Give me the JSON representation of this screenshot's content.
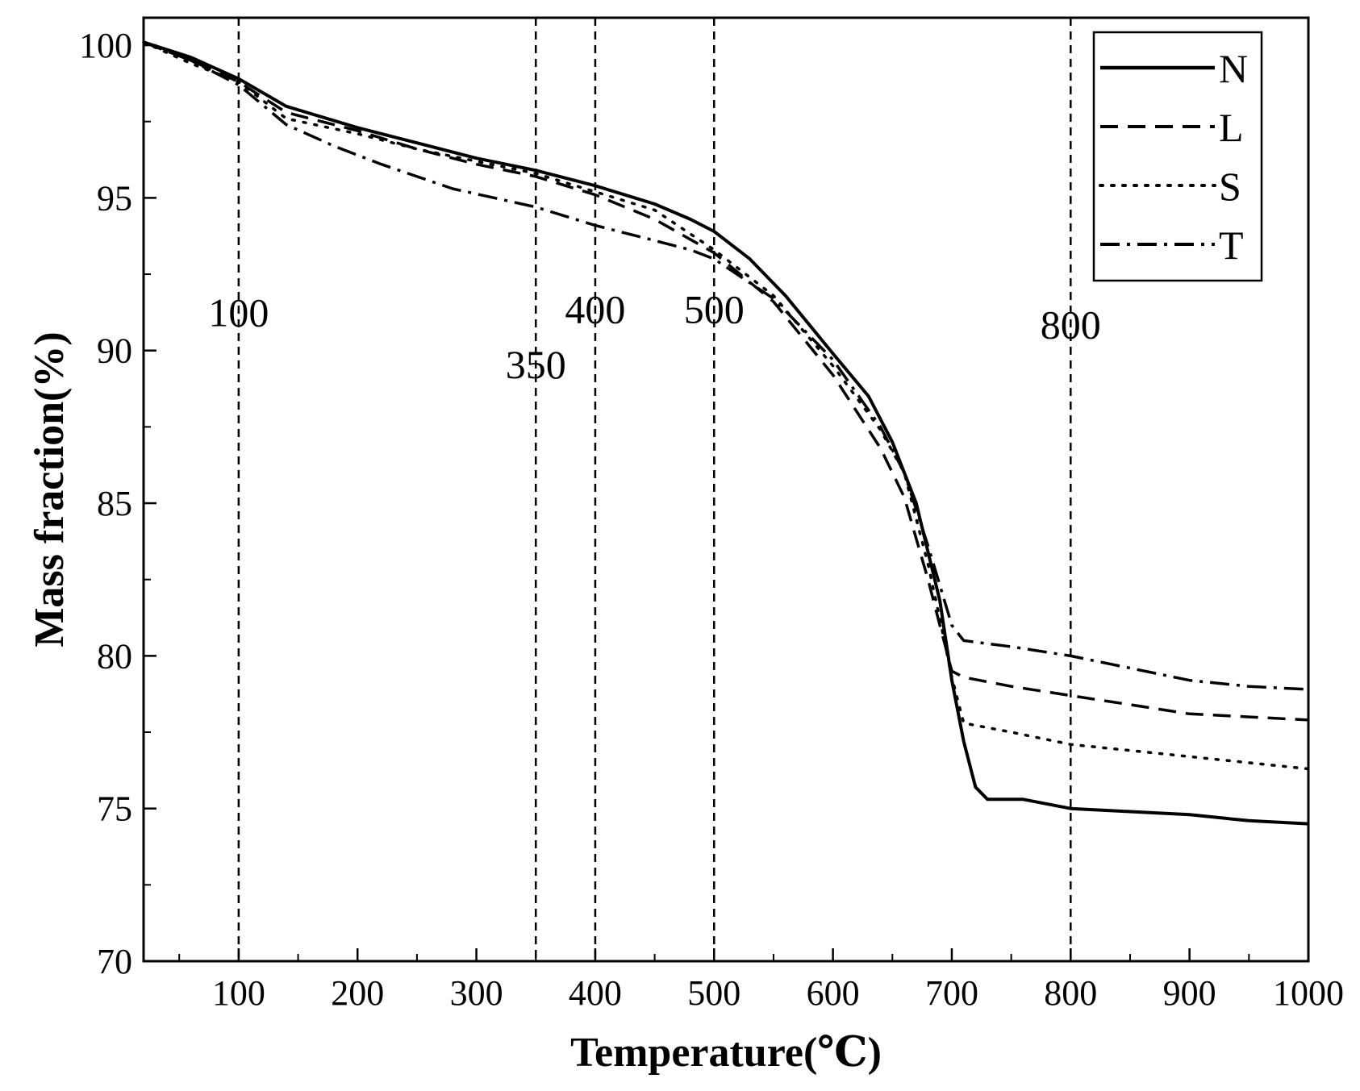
{
  "chart_data": {
    "type": "line",
    "xlabel": "Temperature(℃)",
    "ylabel": "Mass fraction(%)",
    "xlim": [
      20,
      1000
    ],
    "ylim": [
      70,
      100.9
    ],
    "xticks": [
      100,
      200,
      300,
      400,
      500,
      600,
      700,
      800,
      900,
      1000
    ],
    "xtick_labels": [
      "100",
      "200",
      "300",
      "400",
      "500",
      "600",
      "700",
      "800",
      "900",
      "1000"
    ],
    "yticks": [
      70,
      75,
      80,
      85,
      90,
      95,
      100
    ],
    "ytick_labels": [
      "70",
      "75",
      "80",
      "85",
      "90",
      "95",
      "100"
    ],
    "grid": false,
    "legend_position": "top-right",
    "vlines": [
      {
        "x": 100,
        "label": "100",
        "label_y": 90.8
      },
      {
        "x": 350,
        "label": "350",
        "label_y": 89.1
      },
      {
        "x": 400,
        "label": "400",
        "label_y": 90.9
      },
      {
        "x": 500,
        "label": "500",
        "label_y": 90.9
      },
      {
        "x": 800,
        "label": "800",
        "label_y": 90.4
      }
    ],
    "series": [
      {
        "name": "N",
        "style": "solid",
        "x": [
          20,
          60,
          100,
          140,
          200,
          250,
          300,
          350,
          400,
          450,
          480,
          500,
          530,
          560,
          600,
          630,
          650,
          670,
          690,
          700,
          710,
          720,
          730,
          740,
          760,
          800,
          850,
          900,
          950,
          1000
        ],
        "y": [
          100.1,
          99.6,
          98.9,
          98.0,
          97.3,
          96.8,
          96.3,
          95.9,
          95.4,
          94.8,
          94.3,
          93.9,
          93.0,
          91.8,
          89.9,
          88.5,
          87.0,
          85.0,
          81.8,
          79.2,
          77.2,
          75.7,
          75.3,
          75.3,
          75.3,
          75.0,
          74.9,
          74.8,
          74.6,
          74.5
        ]
      },
      {
        "name": "L",
        "style": "dashed",
        "x": [
          20,
          60,
          100,
          140,
          200,
          250,
          300,
          350,
          400,
          450,
          500,
          550,
          600,
          640,
          660,
          680,
          690,
          700,
          710,
          750,
          800,
          850,
          900,
          950,
          1000
        ],
        "y": [
          100.1,
          99.5,
          98.8,
          97.8,
          97.2,
          96.6,
          96.1,
          95.7,
          95.1,
          94.3,
          93.2,
          91.6,
          89.2,
          86.8,
          85.2,
          82.5,
          81.0,
          79.5,
          79.3,
          79.0,
          78.7,
          78.4,
          78.1,
          78.0,
          77.9
        ]
      },
      {
        "name": "S",
        "style": "dotted",
        "x": [
          20,
          60,
          100,
          140,
          200,
          250,
          300,
          350,
          400,
          450,
          500,
          550,
          600,
          640,
          660,
          680,
          690,
          700,
          710,
          750,
          800,
          850,
          900,
          950,
          1000
        ],
        "y": [
          100.1,
          99.4,
          98.8,
          97.6,
          97.1,
          96.6,
          96.2,
          95.8,
          95.2,
          94.6,
          93.3,
          91.8,
          89.5,
          87.4,
          86.0,
          83.0,
          81.2,
          79.3,
          77.8,
          77.5,
          77.1,
          76.9,
          76.7,
          76.5,
          76.3
        ]
      },
      {
        "name": "T",
        "style": "dashdot",
        "x": [
          20,
          60,
          100,
          140,
          180,
          220,
          280,
          350,
          400,
          440,
          480,
          500,
          550,
          600,
          640,
          660,
          680,
          700,
          710,
          750,
          800,
          850,
          900,
          950,
          1000
        ],
        "y": [
          100.1,
          99.5,
          98.7,
          97.4,
          96.7,
          96.1,
          95.3,
          94.7,
          94.1,
          93.7,
          93.3,
          93.0,
          91.7,
          89.7,
          87.5,
          86.0,
          83.6,
          81.0,
          80.5,
          80.3,
          80.0,
          79.6,
          79.2,
          79.0,
          78.9
        ]
      }
    ]
  }
}
